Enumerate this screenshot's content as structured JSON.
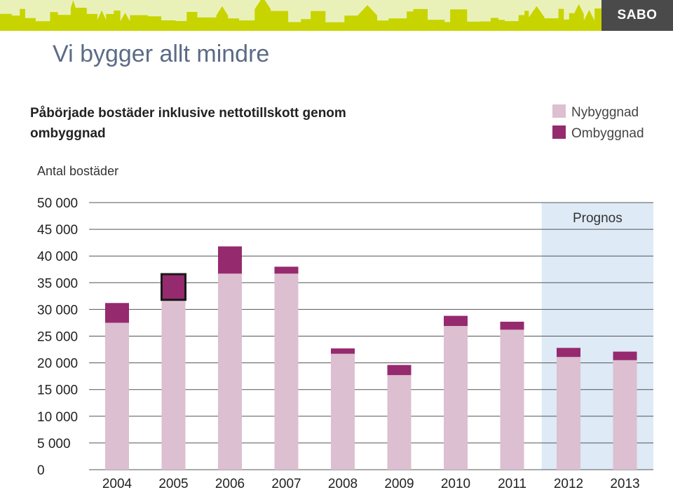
{
  "slide": {
    "title": "Vi bygger allt mindre",
    "logo": "SABO",
    "header_color": "#c8d400"
  },
  "chart_data": {
    "type": "bar",
    "stacked": true,
    "title": "Påbörjade bostäder inklusive nettotillskott genom ombyggnad",
    "ylabel": "Antal bostäder",
    "xlabel": "",
    "categories": [
      "2004",
      "2005",
      "2006",
      "2007",
      "2008",
      "2009",
      "2010",
      "2011",
      "2012",
      "2013"
    ],
    "series": [
      {
        "name": "Nybyggnad",
        "color": "#dcbfd0",
        "values": [
          27500,
          31800,
          36700,
          36700,
          21700,
          17700,
          26900,
          26200,
          21100,
          20500
        ]
      },
      {
        "name": "Ombyggnad",
        "color": "#962a6e",
        "values": [
          3700,
          4800,
          5100,
          1300,
          1000,
          1900,
          1900,
          1500,
          1700,
          1600
        ]
      }
    ],
    "ylim": [
      0,
      50000
    ],
    "yticks": [
      {
        "value": 0,
        "label": "0"
      },
      {
        "value": 5000,
        "label": "5 000"
      },
      {
        "value": 10000,
        "label": "10 000"
      },
      {
        "value": 15000,
        "label": "15 000"
      },
      {
        "value": 20000,
        "label": "20 000"
      },
      {
        "value": 25000,
        "label": "25 000"
      },
      {
        "value": 30000,
        "label": "30 000"
      },
      {
        "value": 35000,
        "label": "35 000"
      },
      {
        "value": 40000,
        "label": "40 000"
      },
      {
        "value": 45000,
        "label": "45 000"
      },
      {
        "value": 50000,
        "label": "50 000"
      }
    ],
    "grid": true,
    "legend_position": "top-right",
    "forecast": {
      "label": "Prognos",
      "categories": [
        "2012",
        "2013"
      ],
      "color": "#deeaf6"
    },
    "highlighted_segment": {
      "category": "2005",
      "series": "Ombyggnad"
    }
  }
}
